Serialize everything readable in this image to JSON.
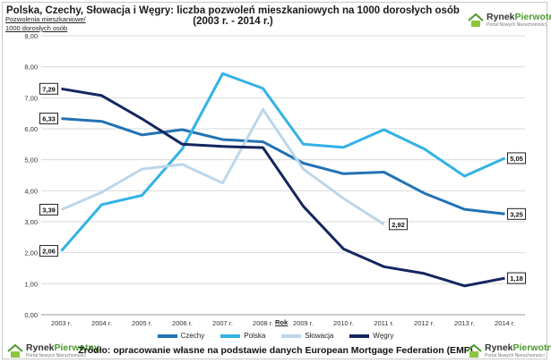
{
  "chart_data": {
    "type": "line",
    "title": "Polska, Czechy, Słowacja i Węgry: liczba pozwoleń mieszkaniowych na 1000 dorosłych osób (2003 r. - 2014 r.)",
    "ylabel": [
      "Pozwolenia mieszkaniowe/",
      "1000 dorosłych osób"
    ],
    "xlabel": "Rok",
    "categories": [
      "2003 r.",
      "2004 r.",
      "2005 r.",
      "2006 r.",
      "2007 r.",
      "2008 r.",
      "2009 r.",
      "2010 r.",
      "2011 r.",
      "2012 r.",
      "2013 r.",
      "2014 r."
    ],
    "ylim": [
      0,
      9
    ],
    "yticks": [
      "0,00",
      "1,00",
      "2,00",
      "3,00",
      "4,00",
      "5,00",
      "6,00",
      "7,00",
      "8,00",
      "9,00"
    ],
    "grid": true,
    "legend_position": "bottom",
    "series": [
      {
        "name": "Czechy",
        "color": "#2272b4",
        "values": [
          6.33,
          6.24,
          5.8,
          5.97,
          5.65,
          5.58,
          4.89,
          4.55,
          4.6,
          3.92,
          3.4,
          3.25
        ]
      },
      {
        "name": "Polska",
        "color": "#33b2e4",
        "values": [
          2.06,
          3.55,
          3.85,
          5.35,
          7.78,
          7.3,
          5.5,
          5.4,
          5.97,
          5.35,
          4.47,
          5.05
        ]
      },
      {
        "name": "Słowacja",
        "color": "#bcd6ea",
        "values": [
          3.39,
          3.95,
          4.7,
          4.85,
          4.25,
          6.62,
          4.7,
          3.75,
          2.92,
          null,
          null,
          null
        ]
      },
      {
        "name": "Węgry",
        "color": "#13265e",
        "values": [
          7.29,
          7.07,
          6.32,
          5.5,
          5.43,
          5.39,
          3.5,
          2.12,
          1.55,
          1.33,
          0.93,
          1.18
        ]
      }
    ],
    "annotations": [
      {
        "series": "Węgry",
        "index": 0,
        "label": "7,29"
      },
      {
        "series": "Czechy",
        "index": 0,
        "label": "6,33"
      },
      {
        "series": "Słowacja",
        "index": 0,
        "label": "3,39"
      },
      {
        "series": "Polska",
        "index": 0,
        "label": "2,06"
      },
      {
        "series": "Słowacja",
        "index": 8,
        "label": "2,92"
      },
      {
        "series": "Polska",
        "index": 11,
        "label": "5,05"
      },
      {
        "series": "Czechy",
        "index": 11,
        "label": "3,25"
      },
      {
        "series": "Węgry",
        "index": 11,
        "label": "1,18"
      }
    ]
  },
  "source": "Źródło: opracowanie własne na podstawie danych European Mortgage Federation (EMF)",
  "logo": {
    "name_left": "Rynek",
    "name_right": "Pierwotny",
    "tagline": "Portal Nowych Nieruchomości"
  }
}
